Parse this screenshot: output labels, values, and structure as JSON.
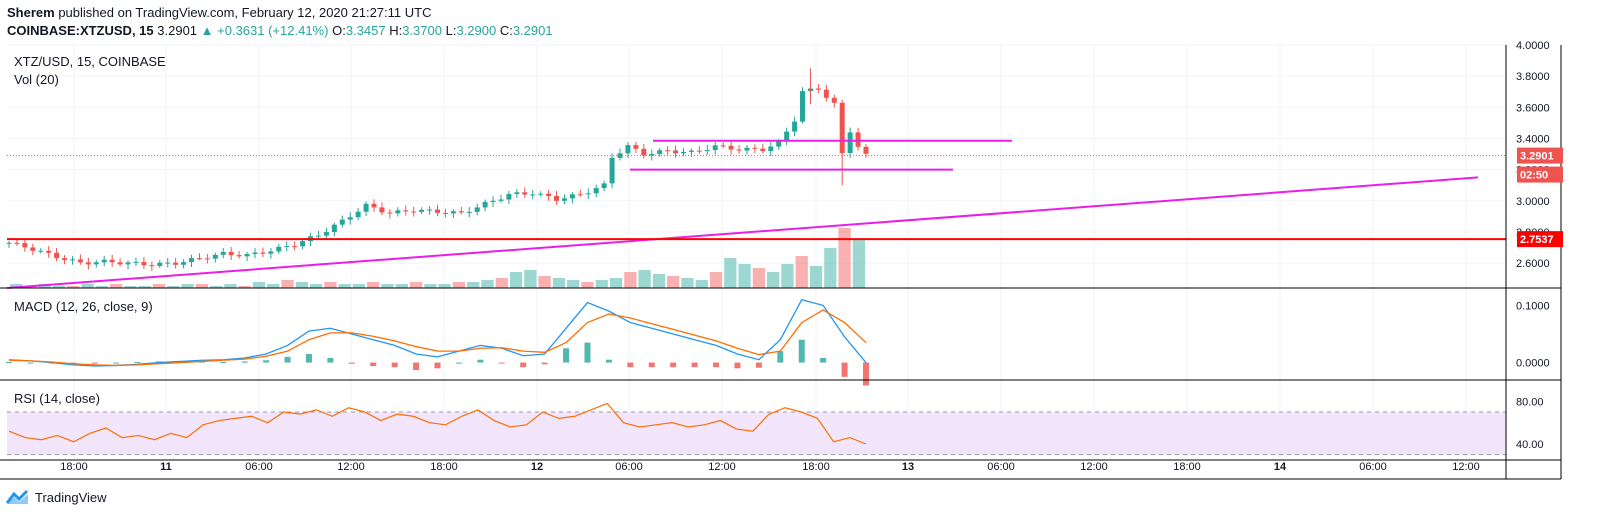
{
  "header": {
    "author": "Sherem",
    "published_text": "published on TradingView.com, February 12, 2020 21:27:11 UTC",
    "symbol": "COINBASE:XTZUSD, 15",
    "last": "3.2901",
    "change": "▲ +0.3631 (+12.41%)",
    "o_label": "O:",
    "o_value": "3.3457",
    "h_label": "H:",
    "h_value": "3.3700",
    "l_label": "L:",
    "l_value": "3.2900",
    "c_label": "C:",
    "c_value": "3.2901"
  },
  "panes": {
    "price_title": "XTZ/USD, 15, COINBASE",
    "vol_title": "Vol (20)",
    "macd_title": "MACD (12, 26, close, 9)",
    "rsi_title": "RSI (14, close)"
  },
  "brand": "TradingView",
  "colors": {
    "up": "#26a69a",
    "down": "#ef5350",
    "trendline": "#e91ee9",
    "support": "#ff0000",
    "macd": "#2196f3",
    "signal": "#ff6d00",
    "rsi": "#ff6d00",
    "rsi_band": "#f3e5fb"
  },
  "chart_data": {
    "type": "candlestick",
    "x_ticks": [
      "18:00",
      "11",
      "06:00",
      "12:00",
      "18:00",
      "12",
      "06:00",
      "12:00",
      "18:00",
      "13",
      "06:00",
      "12:00",
      "18:00",
      "14",
      "06:00",
      "12:00"
    ],
    "price_axis": {
      "ticks": [
        "4.0000",
        "3.8000",
        "3.6000",
        "3.4000",
        "3.2000",
        "3.0000",
        "2.8000",
        "2.6000"
      ],
      "range": [
        2.44,
        4.0
      ]
    },
    "last_price_tag": "3.2901",
    "countdown_tag": "02:50",
    "level_tag": "2.7537",
    "horizontal_level": 2.7537,
    "range_box": {
      "top": 3.385,
      "bottom": 3.2
    },
    "trendline": {
      "from_price": 2.44,
      "to_price": 3.15
    },
    "price_path": [
      [
        0,
        2.73
      ],
      [
        3,
        2.69
      ],
      [
        6,
        2.64
      ],
      [
        9,
        2.6
      ],
      [
        12,
        2.61
      ],
      [
        15,
        2.6
      ],
      [
        18,
        2.59
      ],
      [
        21,
        2.6
      ],
      [
        24,
        2.63
      ],
      [
        27,
        2.66
      ],
      [
        30,
        2.65
      ],
      [
        33,
        2.68
      ],
      [
        36,
        2.72
      ],
      [
        39,
        2.78
      ],
      [
        42,
        2.87
      ],
      [
        45,
        2.97
      ],
      [
        48,
        2.92
      ],
      [
        51,
        2.94
      ],
      [
        54,
        2.93
      ],
      [
        57,
        2.92
      ],
      [
        60,
        2.98
      ],
      [
        63,
        3.04
      ],
      [
        66,
        3.05
      ],
      [
        69,
        3.01
      ],
      [
        72,
        3.04
      ],
      [
        75,
        3.1
      ],
      [
        76,
        3.28
      ],
      [
        78,
        3.35
      ],
      [
        80,
        3.3
      ],
      [
        83,
        3.32
      ],
      [
        86,
        3.31
      ],
      [
        89,
        3.35
      ],
      [
        92,
        3.33
      ],
      [
        95,
        3.33
      ],
      [
        97,
        3.37
      ],
      [
        99,
        3.52
      ],
      [
        100,
        3.7
      ],
      [
        102,
        3.72
      ],
      [
        104,
        3.62
      ],
      [
        105,
        3.3
      ],
      [
        106,
        3.45
      ],
      [
        107,
        3.35
      ],
      [
        108,
        3.29
      ]
    ],
    "volume": [
      2,
      1,
      2,
      1,
      1,
      2,
      1,
      2,
      1,
      1,
      2,
      1,
      2,
      2,
      1,
      2,
      1,
      3,
      2,
      4,
      3,
      2,
      3,
      2,
      2,
      3,
      2,
      2,
      3,
      2,
      2,
      3,
      3,
      4,
      5,
      8,
      9,
      6,
      5,
      4,
      3,
      4,
      5,
      8,
      9,
      7,
      6,
      5,
      4,
      8,
      15,
      12,
      10,
      8,
      12,
      16,
      11,
      20,
      30,
      24
    ],
    "macd": {
      "range": [
        -0.02,
        0.12
      ],
      "ticks": [
        "0.1000",
        "0.0000"
      ],
      "macd_line": [
        0.005,
        0.003,
        0.0,
        -0.004,
        -0.006,
        -0.005,
        -0.003,
        0.0,
        0.002,
        0.004,
        0.005,
        0.008,
        0.015,
        0.03,
        0.055,
        0.06,
        0.05,
        0.04,
        0.03,
        0.015,
        0.01,
        0.02,
        0.03,
        0.025,
        0.012,
        0.015,
        0.06,
        0.105,
        0.09,
        0.07,
        0.06,
        0.05,
        0.04,
        0.03,
        0.015,
        0.005,
        0.04,
        0.11,
        0.1,
        0.045,
        0.0
      ],
      "signal_line": [
        0.004,
        0.003,
        0.001,
        -0.002,
        -0.004,
        -0.005,
        -0.004,
        -0.002,
        0.0,
        0.002,
        0.004,
        0.006,
        0.011,
        0.02,
        0.04,
        0.052,
        0.052,
        0.046,
        0.038,
        0.028,
        0.02,
        0.02,
        0.025,
        0.026,
        0.02,
        0.018,
        0.035,
        0.07,
        0.085,
        0.078,
        0.068,
        0.058,
        0.048,
        0.038,
        0.025,
        0.014,
        0.02,
        0.07,
        0.092,
        0.07,
        0.035
      ],
      "histogram": [
        0.001,
        0.0,
        -0.001,
        -0.002,
        -0.002,
        0.0,
        0.001,
        0.002,
        0.002,
        0.002,
        0.001,
        0.002,
        0.004,
        0.01,
        0.015,
        0.008,
        -0.002,
        -0.006,
        -0.008,
        -0.013,
        -0.01,
        0.0,
        0.005,
        -0.001,
        -0.008,
        -0.003,
        0.025,
        0.035,
        0.005,
        -0.008,
        -0.008,
        -0.008,
        -0.008,
        -0.008,
        -0.01,
        -0.009,
        0.02,
        0.04,
        0.008,
        -0.025,
        -0.04
      ]
    },
    "rsi": {
      "range": [
        25,
        100
      ],
      "ticks": [
        "80.00",
        "40.00"
      ],
      "band": [
        30,
        70
      ],
      "values": [
        52,
        46,
        44,
        48,
        42,
        50,
        55,
        46,
        48,
        44,
        50,
        46,
        58,
        62,
        64,
        66,
        60,
        70,
        68,
        72,
        66,
        74,
        70,
        62,
        68,
        66,
        60,
        58,
        66,
        72,
        62,
        56,
        58,
        70,
        64,
        66,
        72,
        78,
        60,
        56,
        58,
        60,
        56,
        58,
        62,
        54,
        52,
        68,
        74,
        70,
        64,
        42,
        46,
        40
      ]
    }
  }
}
